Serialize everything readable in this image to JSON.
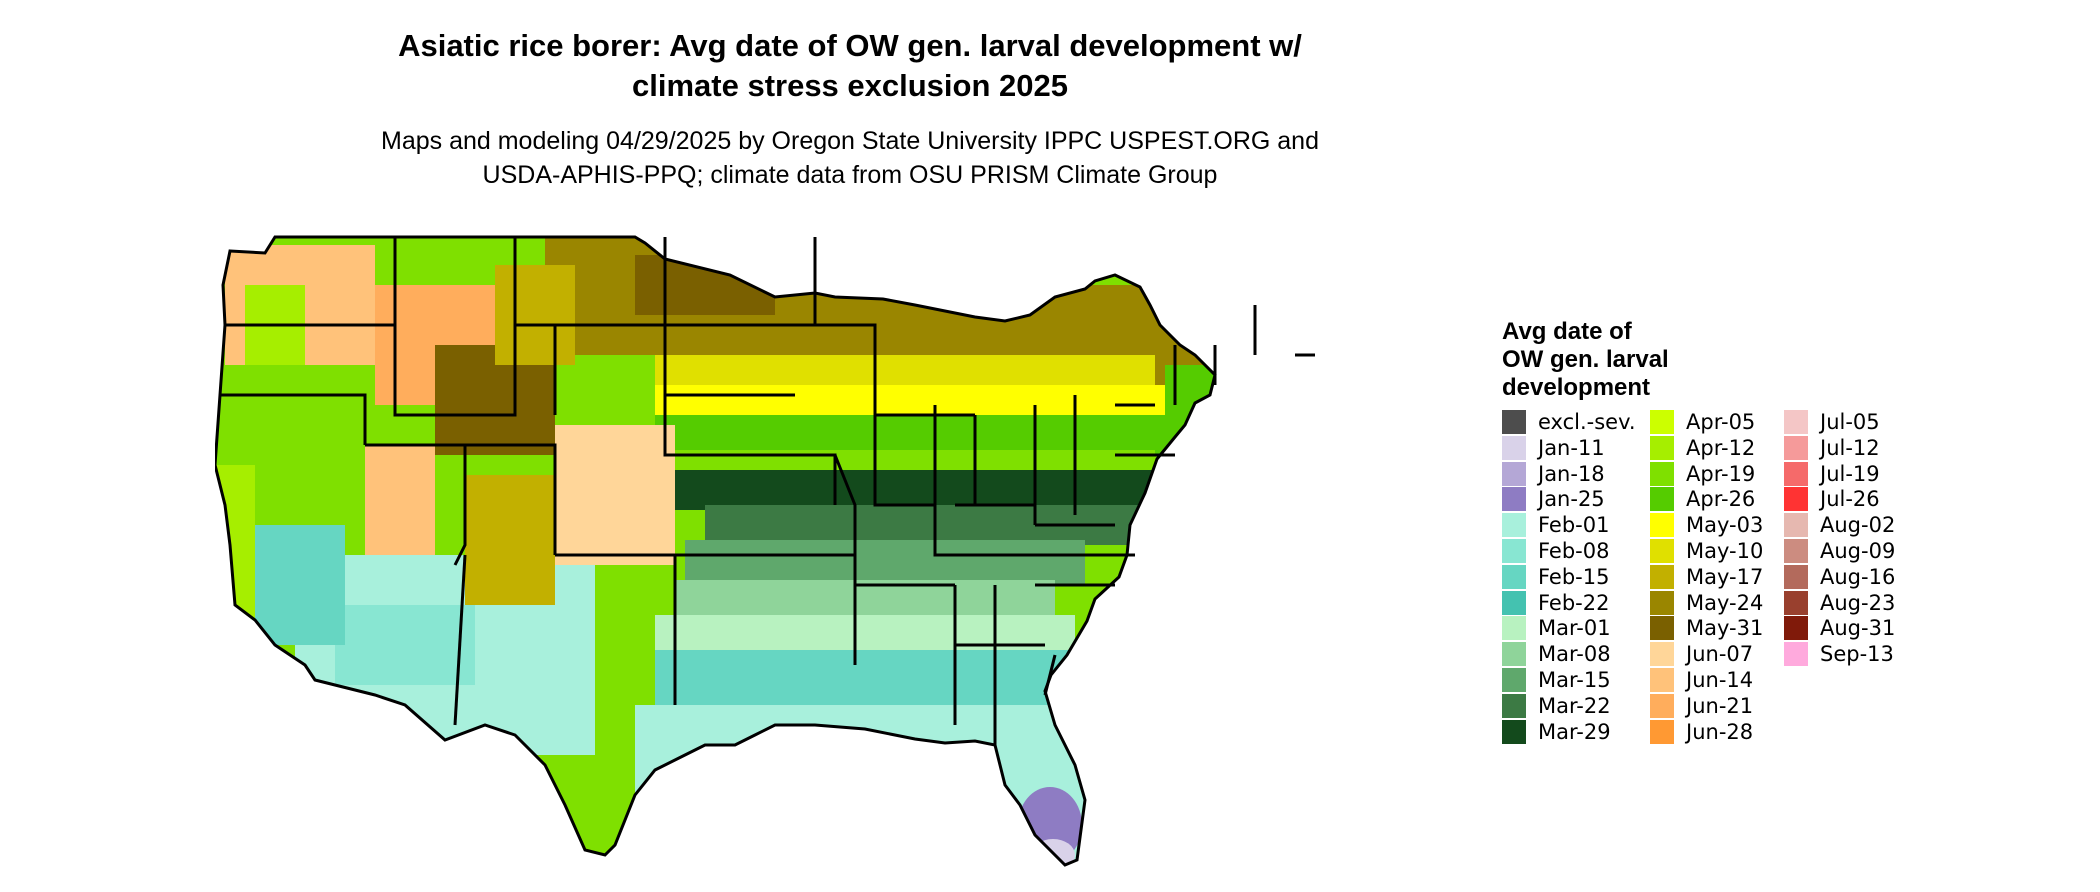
{
  "title": {
    "line1": "Asiatic rice borer: Avg date of OW gen. larval development w/",
    "line2": "climate stress exclusion 2025"
  },
  "subtitle": {
    "line1": "Maps and modeling 04/29/2025 by Oregon State University IPPC USPEST.ORG and",
    "line2": "USDA-APHIS-PPQ; climate data from OSU PRISM Climate Group"
  },
  "legend": {
    "title_line1": "Avg date of",
    "title_line2": "OW gen. larval",
    "title_line3": "development",
    "items": [
      {
        "label": "excl.-sev.",
        "color": "#4d4d4d"
      },
      {
        "label": "Jan-11",
        "color": "#d9d2e9"
      },
      {
        "label": "Jan-18",
        "color": "#b4a7d6"
      },
      {
        "label": "Jan-25",
        "color": "#8e7cc3"
      },
      {
        "label": "Feb-01",
        "color": "#a8f0dc"
      },
      {
        "label": "Feb-08",
        "color": "#88e6d2"
      },
      {
        "label": "Feb-15",
        "color": "#66d6c2"
      },
      {
        "label": "Feb-22",
        "color": "#44c2b0"
      },
      {
        "label": "Mar-01",
        "color": "#b8f2c0"
      },
      {
        "label": "Mar-08",
        "color": "#8fd49a"
      },
      {
        "label": "Mar-15",
        "color": "#5fa86c"
      },
      {
        "label": "Mar-22",
        "color": "#3c7a44"
      },
      {
        "label": "Mar-29",
        "color": "#134a1c"
      },
      {
        "label": "Apr-05",
        "color": "#ccff00"
      },
      {
        "label": "Apr-12",
        "color": "#a6ee00"
      },
      {
        "label": "Apr-19",
        "color": "#7fe000"
      },
      {
        "label": "Apr-26",
        "color": "#55cc00"
      },
      {
        "label": "May-03",
        "color": "#ffff00"
      },
      {
        "label": "May-10",
        "color": "#e0e000"
      },
      {
        "label": "May-17",
        "color": "#c2b000"
      },
      {
        "label": "May-24",
        "color": "#9a8600"
      },
      {
        "label": "May-31",
        "color": "#7a6000"
      },
      {
        "label": "Jun-07",
        "color": "#ffd699"
      },
      {
        "label": "Jun-14",
        "color": "#ffc27a"
      },
      {
        "label": "Jun-21",
        "color": "#ffad5c"
      },
      {
        "label": "Jun-28",
        "color": "#ff9933"
      },
      {
        "label": "Jul-05",
        "color": "#f4c6c6"
      },
      {
        "label": "Jul-12",
        "color": "#f59a9a"
      },
      {
        "label": "Jul-19",
        "color": "#f56a6a"
      },
      {
        "label": "Jul-26",
        "color": "#ff3333"
      },
      {
        "label": "Aug-02",
        "color": "#e6b8b0"
      },
      {
        "label": "Aug-09",
        "color": "#cc8c80"
      },
      {
        "label": "Aug-16",
        "color": "#b36a5c"
      },
      {
        "label": "Aug-23",
        "color": "#99402e"
      },
      {
        "label": "Aug-31",
        "color": "#801a0a"
      },
      {
        "label": "Sep-13",
        "color": "#ffaadd"
      }
    ]
  }
}
